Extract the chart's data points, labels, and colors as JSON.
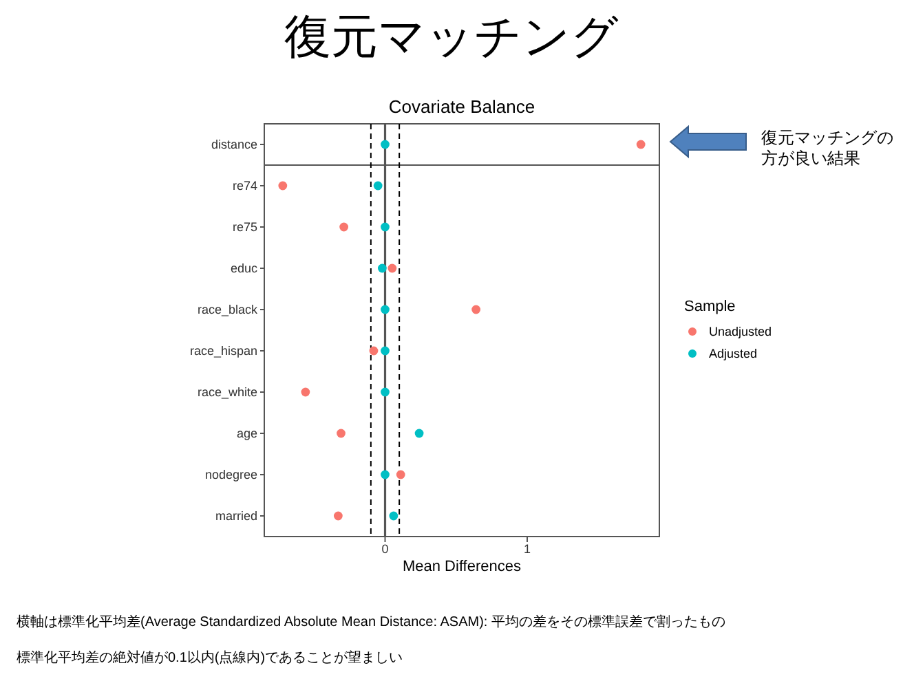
{
  "chart_data": {
    "type": "scatter",
    "title": "復元マッチング",
    "subtitle": "Covariate Balance",
    "xlabel": "Mean Differences",
    "legend_title": "Sample",
    "legend": "right",
    "orientation": "horizontal",
    "categories": [
      "distance",
      "re74",
      "re75",
      "educ",
      "race_black",
      "race_hispan",
      "race_white",
      "age",
      "nodegree",
      "married"
    ],
    "series": [
      {
        "name": "Unadjusted",
        "color": "#f8766d",
        "values": [
          1.8,
          -0.72,
          -0.29,
          0.05,
          0.64,
          -0.08,
          -0.56,
          -0.31,
          0.11,
          -0.33
        ]
      },
      {
        "name": "Adjusted",
        "color": "#00bfc4",
        "values": [
          0.0,
          -0.05,
          0.0,
          -0.02,
          0.0,
          0.0,
          0.0,
          0.24,
          0.0,
          0.06
        ]
      }
    ],
    "xlim": [
      -0.85,
      1.93
    ],
    "xticks": [
      0,
      1
    ],
    "marker": "circle",
    "grid": false,
    "ref_lines": [
      {
        "axis": "x",
        "value": -0.1,
        "line_style": "dashed",
        "color": "#000000"
      },
      {
        "axis": "x",
        "value": 0.1,
        "line_style": "dashed",
        "color": "#000000"
      },
      {
        "axis": "x",
        "value": 0,
        "line_style": "solid",
        "color": "#555555"
      }
    ],
    "annotations": [
      "復元マッチングの方が良い結果",
      "横軸は標準化平均差(Average Standardized Absolute Mean Distance: ASAM): 平均の差をその標準誤差で割ったもの",
      "標準化平均差の絶対値が0.1以内(点線内)であることが望ましい"
    ]
  }
}
